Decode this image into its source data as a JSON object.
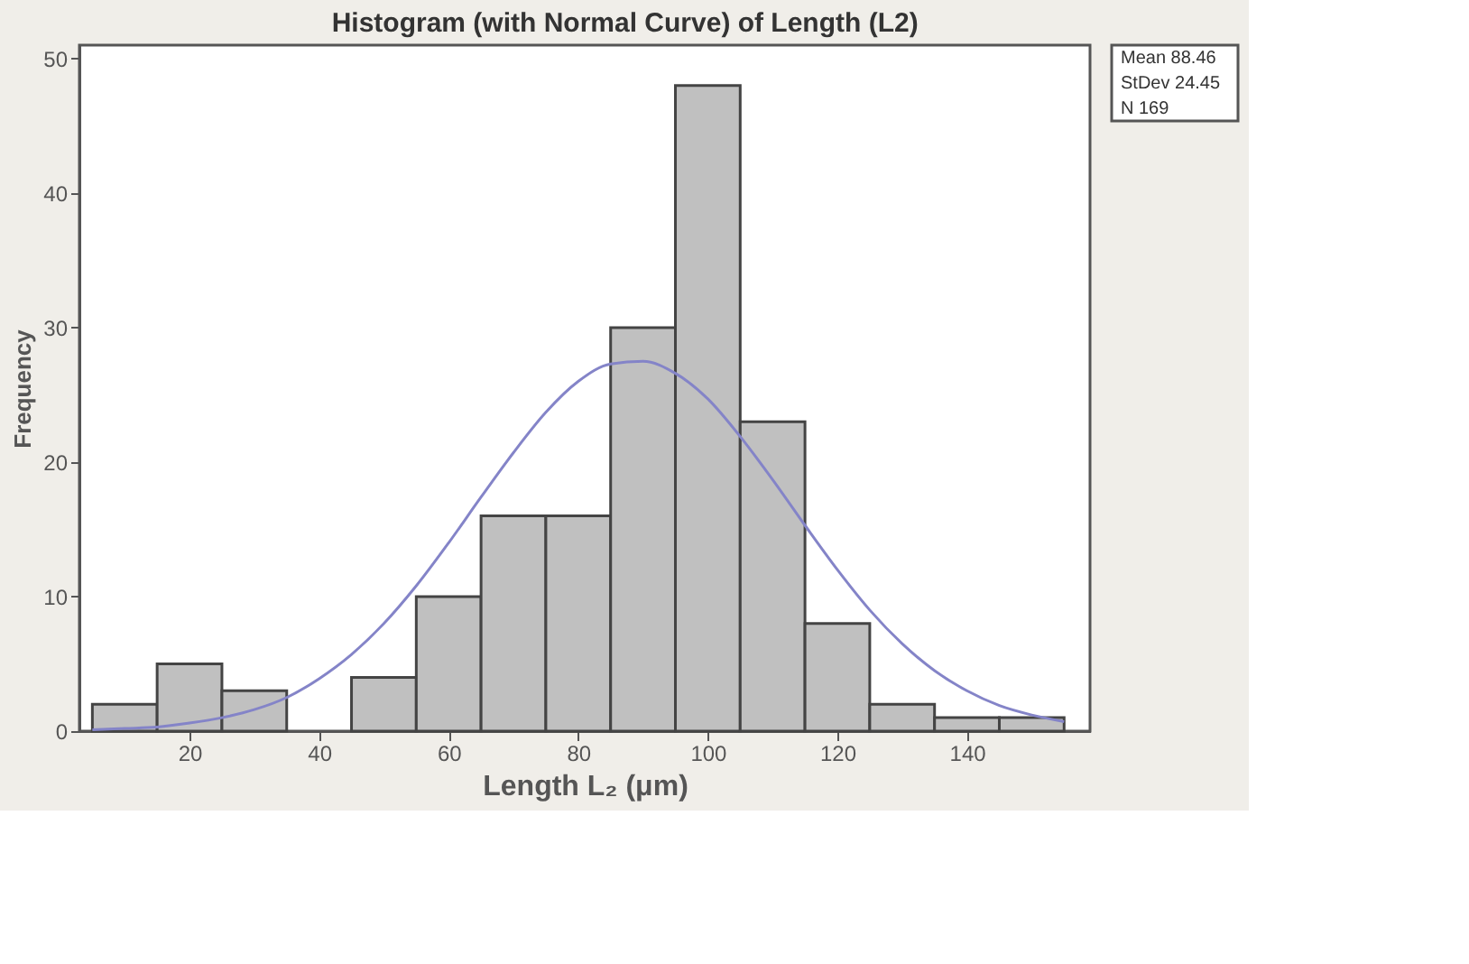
{
  "chart_data": {
    "type": "histogram",
    "title": "Histogram (with Normal Curve) of Length (L2)",
    "xlabel": "Length L₂ (μm)",
    "ylabel": "Frequency",
    "xlim": [
      3,
      159
    ],
    "xticks": [
      20,
      40,
      60,
      80,
      100,
      120,
      140
    ],
    "ylim": [
      0,
      51
    ],
    "yticks": [
      0,
      10,
      20,
      30,
      40,
      50
    ],
    "grid": false,
    "series": [
      {
        "color": "#c0c0c0",
        "bins": [
          5,
          15,
          25,
          35,
          45,
          55,
          65,
          75,
          85,
          95,
          105,
          115,
          125,
          135,
          145,
          155
        ],
        "values": [
          2,
          5,
          3,
          0,
          4,
          10,
          16,
          16,
          30,
          48,
          23,
          8,
          2,
          1,
          1
        ]
      },
      {
        "type": "line",
        "color": "#8484c8",
        "x": [
          5,
          10,
          15,
          20,
          25,
          30,
          35,
          40,
          45,
          50,
          55,
          60,
          65,
          70,
          75,
          80,
          85,
          90,
          95,
          100,
          105,
          110,
          115,
          120,
          125,
          130,
          135,
          140,
          145,
          150,
          155
        ],
        "values": [
          0.1,
          0.2,
          0.3,
          0.6,
          1.0,
          1.6,
          2.5,
          3.9,
          5.7,
          8.0,
          10.8,
          14.0,
          17.4,
          20.7,
          23.7,
          26.0,
          27.3,
          27.5,
          26.6,
          24.7,
          21.9,
          18.7,
          15.3,
          12.0,
          9.0,
          6.5,
          4.5,
          3.0,
          1.9,
          1.2,
          0.7
        ]
      }
    ],
    "annotations": [
      "Mean 88.46",
      "StDev 24.45",
      "N 169"
    ]
  }
}
